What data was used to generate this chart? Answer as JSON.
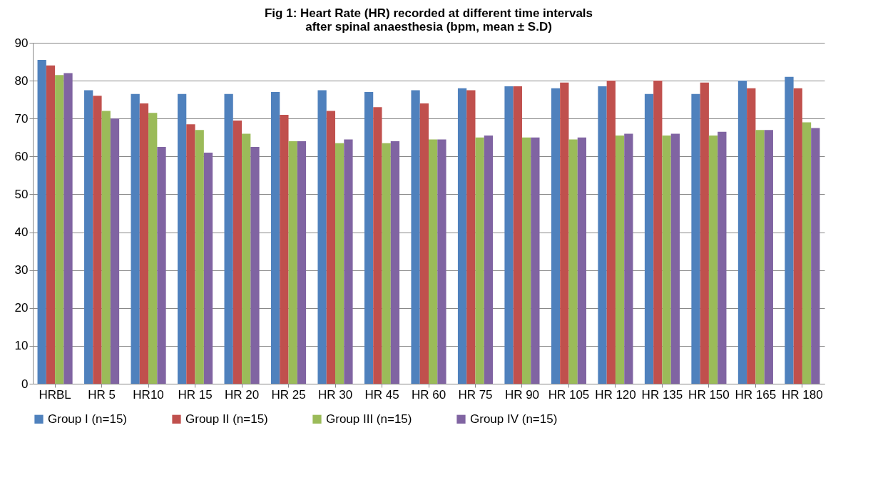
{
  "chart_data": {
    "type": "bar",
    "title": "Fig 1: Heart Rate (HR) recorded at different time intervals\nafter spinal anaesthesia (bpm, mean ± S.D)",
    "categories": [
      "HRBL",
      "HR 5",
      "HR10",
      "HR 15",
      "HR 20",
      "HR 25",
      "HR 30",
      "HR 45",
      "HR 60",
      "HR 75",
      "HR 90",
      "HR 105",
      "HR 120",
      "HR 135",
      "HR 150",
      "HR 165",
      "HR 180"
    ],
    "series": [
      {
        "name": "Group I (n=15)",
        "color": "#4f81bd",
        "values": [
          85.5,
          77.5,
          76.5,
          76.5,
          76.5,
          77,
          77.5,
          77,
          77.5,
          78,
          78.5,
          78,
          78.5,
          76.5,
          76.5,
          80,
          81
        ]
      },
      {
        "name": "Group II (n=15)",
        "color": "#c0504d",
        "values": [
          84,
          76,
          74,
          68.5,
          69.5,
          71,
          72,
          73,
          74,
          77.5,
          78.5,
          79.5,
          80,
          80,
          79.5,
          78,
          78
        ]
      },
      {
        "name": "Group III (n=15)",
        "color": "#9bbb59",
        "values": [
          81.5,
          72,
          71.5,
          67,
          66,
          64,
          63.5,
          63.5,
          64.5,
          65,
          65,
          64.5,
          65.5,
          65.5,
          65.5,
          67,
          69
        ]
      },
      {
        "name": "Group IV (n=15)",
        "color": "#8064a2",
        "values": [
          82,
          70,
          62.5,
          61,
          62.5,
          64,
          64.5,
          64,
          64.5,
          65.5,
          65,
          65,
          66,
          66,
          66.5,
          67,
          67.5
        ]
      }
    ],
    "ylim": [
      0,
      90
    ],
    "yticks": [
      0,
      10,
      20,
      30,
      40,
      50,
      60,
      70,
      80,
      90
    ],
    "grid": "y",
    "legend": "bottom"
  }
}
